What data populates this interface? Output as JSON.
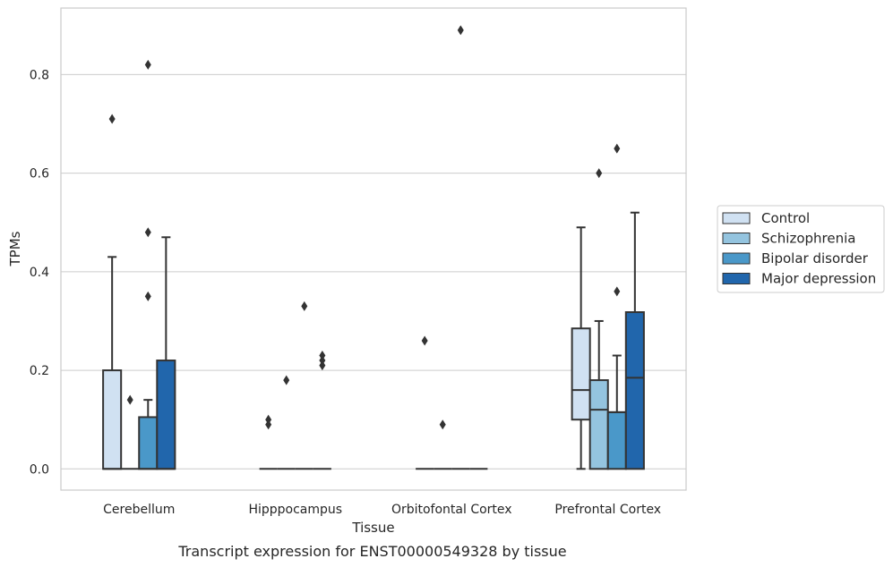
{
  "chart_data": {
    "type": "box",
    "caption": "Transcript expression for ENST00000549328 by tissue",
    "xlabel": "Tissue",
    "ylabel": "TPMs",
    "ylim": [
      -0.043,
      0.935
    ],
    "yticks": [
      0.0,
      0.2,
      0.4,
      0.6,
      0.8
    ],
    "ytick_labels": [
      "0.0",
      "0.2",
      "0.4",
      "0.6",
      "0.8"
    ],
    "grid": "horizontal",
    "legend_position": "right",
    "categories": [
      "Cerebellum",
      "Hipppocampus",
      "Orbitofontal Cortex",
      "Prefrontal Cortex"
    ],
    "series": [
      {
        "name": "Control",
        "color": "#d0e1f2",
        "boxes": [
          {
            "q1": 0.0,
            "median": 0.0,
            "q3": 0.2,
            "whisker_low": 0.0,
            "whisker_high": 0.43,
            "outliers": [
              0.71
            ]
          },
          {
            "q1": 0.0,
            "median": 0.0,
            "q3": 0.0,
            "whisker_low": 0.0,
            "whisker_high": 0.0,
            "outliers": [
              0.09,
              0.1
            ]
          },
          {
            "q1": 0.0,
            "median": 0.0,
            "q3": 0.0,
            "whisker_low": 0.0,
            "whisker_high": 0.0,
            "outliers": [
              0.26
            ]
          },
          {
            "q1": 0.1,
            "median": 0.16,
            "q3": 0.285,
            "whisker_low": 0.0,
            "whisker_high": 0.49,
            "outliers": []
          }
        ]
      },
      {
        "name": "Schizophrenia",
        "color": "#94c4df",
        "boxes": [
          {
            "q1": 0.0,
            "median": 0.0,
            "q3": 0.0,
            "whisker_low": 0.0,
            "whisker_high": 0.0,
            "outliers": [
              0.14
            ]
          },
          {
            "q1": 0.0,
            "median": 0.0,
            "q3": 0.0,
            "whisker_low": 0.0,
            "whisker_high": 0.0,
            "outliers": [
              0.18
            ]
          },
          {
            "q1": 0.0,
            "median": 0.0,
            "q3": 0.0,
            "whisker_low": 0.0,
            "whisker_high": 0.0,
            "outliers": [
              0.09
            ]
          },
          {
            "q1": 0.0,
            "median": 0.12,
            "q3": 0.18,
            "whisker_low": 0.0,
            "whisker_high": 0.3,
            "outliers": [
              0.6
            ]
          }
        ]
      },
      {
        "name": "Bipolar disorder",
        "color": "#4a98c9",
        "boxes": [
          {
            "q1": 0.0,
            "median": 0.0,
            "q3": 0.105,
            "whisker_low": 0.0,
            "whisker_high": 0.14,
            "outliers": [
              0.35,
              0.48,
              0.82
            ]
          },
          {
            "q1": 0.0,
            "median": 0.0,
            "q3": 0.0,
            "whisker_low": 0.0,
            "whisker_high": 0.0,
            "outliers": [
              0.33
            ]
          },
          {
            "q1": 0.0,
            "median": 0.0,
            "q3": 0.0,
            "whisker_low": 0.0,
            "whisker_high": 0.0,
            "outliers": [
              0.89
            ]
          },
          {
            "q1": 0.0,
            "median": 0.115,
            "q3": 0.115,
            "whisker_low": 0.0,
            "whisker_high": 0.23,
            "outliers": [
              0.36,
              0.65
            ]
          }
        ]
      },
      {
        "name": "Major depression",
        "color": "#2166ac",
        "boxes": [
          {
            "q1": 0.0,
            "median": 0.0,
            "q3": 0.22,
            "whisker_low": 0.0,
            "whisker_high": 0.47,
            "outliers": []
          },
          {
            "q1": 0.0,
            "median": 0.0,
            "q3": 0.0,
            "whisker_low": 0.0,
            "whisker_high": 0.0,
            "outliers": [
              0.21,
              0.22,
              0.23
            ]
          },
          {
            "q1": 0.0,
            "median": 0.0,
            "q3": 0.0,
            "whisker_low": 0.0,
            "whisker_high": 0.0,
            "outliers": []
          },
          {
            "q1": 0.0,
            "median": 0.185,
            "q3": 0.318,
            "whisker_low": 0.0,
            "whisker_high": 0.52,
            "outliers": []
          }
        ]
      }
    ]
  }
}
